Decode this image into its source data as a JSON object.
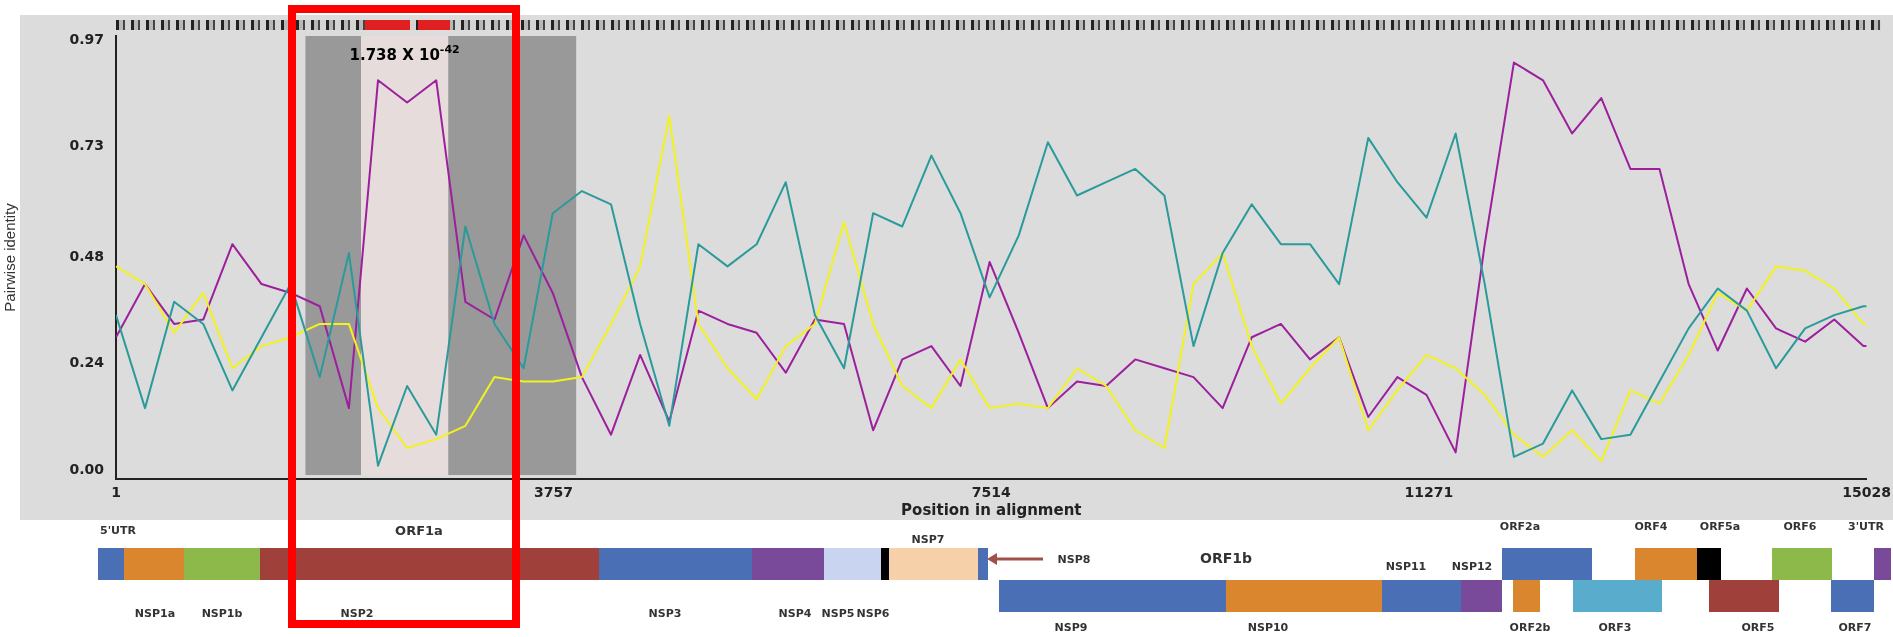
{
  "chart_data": {
    "type": "line",
    "xlabel": "Position in alignment",
    "ylabel": "Pairwise identity",
    "x": [
      1,
      250,
      500,
      750,
      1000,
      1250,
      1500,
      1750,
      2000,
      2250,
      2500,
      2750,
      3000,
      3250,
      3500,
      3750,
      4000,
      4250,
      4500,
      4750,
      5000,
      5250,
      5500,
      5750,
      6000,
      6250,
      6500,
      6750,
      7000,
      7250,
      7500,
      7750,
      8000,
      8250,
      8500,
      8750,
      9000,
      9250,
      9500,
      9750,
      10000,
      10250,
      10500,
      10750,
      11000,
      11250,
      11500,
      11750,
      12000,
      12250,
      12500,
      12750,
      13000,
      13250,
      13500,
      13750,
      14000,
      14250,
      14500,
      14750,
      15000,
      15028
    ],
    "series": [
      {
        "color": "#2a9a9a",
        "values": [
          0.35,
          0.14,
          0.38,
          0.33,
          0.18,
          0.3,
          0.42,
          0.21,
          0.49,
          0.01,
          0.19,
          0.08,
          0.55,
          0.33,
          0.23,
          0.58,
          0.63,
          0.6,
          0.33,
          0.1,
          0.51,
          0.46,
          0.51,
          0.65,
          0.35,
          0.23,
          0.58,
          0.55,
          0.71,
          0.58,
          0.39,
          0.53,
          0.74,
          0.62,
          0.65,
          0.68,
          0.62,
          0.28,
          0.49,
          0.6,
          0.51,
          0.51,
          0.42,
          0.75,
          0.65,
          0.57,
          0.76,
          0.42,
          0.03,
          0.06,
          0.18,
          0.07,
          0.08,
          0.2,
          0.32,
          0.41,
          0.36,
          0.23,
          0.32,
          0.35,
          0.37,
          0.37
        ]
      },
      {
        "color": "#f2f21e",
        "values": [
          0.46,
          0.42,
          0.31,
          0.4,
          0.23,
          0.28,
          0.3,
          0.33,
          0.33,
          0.14,
          0.05,
          0.07,
          0.1,
          0.21,
          0.2,
          0.2,
          0.21,
          0.33,
          0.46,
          0.8,
          0.33,
          0.23,
          0.16,
          0.28,
          0.33,
          0.56,
          0.33,
          0.19,
          0.14,
          0.25,
          0.14,
          0.15,
          0.14,
          0.23,
          0.19,
          0.09,
          0.05,
          0.42,
          0.49,
          0.28,
          0.15,
          0.23,
          0.3,
          0.09,
          0.18,
          0.26,
          0.23,
          0.17,
          0.08,
          0.03,
          0.09,
          0.02,
          0.18,
          0.15,
          0.26,
          0.4,
          0.36,
          0.46,
          0.45,
          0.41,
          0.33,
          0.33
        ]
      },
      {
        "color": "#9c1f9c",
        "values": [
          0.3,
          0.42,
          0.33,
          0.34,
          0.51,
          0.42,
          0.4,
          0.37,
          0.14,
          0.88,
          0.83,
          0.88,
          0.38,
          0.34,
          0.53,
          0.4,
          0.21,
          0.08,
          0.26,
          0.11,
          0.36,
          0.33,
          0.31,
          0.22,
          0.34,
          0.33,
          0.09,
          0.25,
          0.28,
          0.19,
          0.47,
          0.31,
          0.14,
          0.2,
          0.19,
          0.25,
          0.23,
          0.21,
          0.14,
          0.3,
          0.33,
          0.25,
          0.3,
          0.12,
          0.21,
          0.17,
          0.04,
          0.51,
          0.92,
          0.88,
          0.76,
          0.84,
          0.68,
          0.68,
          0.42,
          0.27,
          0.41,
          0.32,
          0.29,
          0.34,
          0.28,
          0.28
        ]
      }
    ],
    "xlim": [
      1,
      15028
    ],
    "xticks": [
      1,
      3757,
      7514,
      11271,
      15028
    ],
    "ylim": [
      -0.02,
      0.98
    ],
    "yticks": [
      {
        "value": 0,
        "label": "0.00"
      },
      0.24,
      0.48,
      0.73,
      0.97
    ],
    "bands": [
      {
        "axis": "x",
        "from": 1627,
        "to": 2104,
        "color": "#999999"
      },
      {
        "axis": "x",
        "from": 2104,
        "to": 2853,
        "color": "#e6dcdc",
        "label": "1.738 X 10$^{-42}$"
      },
      {
        "axis": "x",
        "from": 2853,
        "to": 3951,
        "color": "#999999"
      }
    ],
    "annotations": [
      "5'UTR",
      "ORF1a",
      "NSP1a",
      "NSP1b",
      "NSP2",
      "NSP3",
      "NSP4",
      "NSP5",
      "NSP6",
      "NSP7",
      "NSP8",
      "ORF1b",
      "NSP9",
      "NSP10",
      "NSP11",
      "NSP12",
      "ORF2a",
      "ORF2b",
      "ORF3",
      "ORF4",
      "ORF5a",
      "ORF5",
      "ORF6",
      "ORF7",
      "3'UTR"
    ]
  }
}
